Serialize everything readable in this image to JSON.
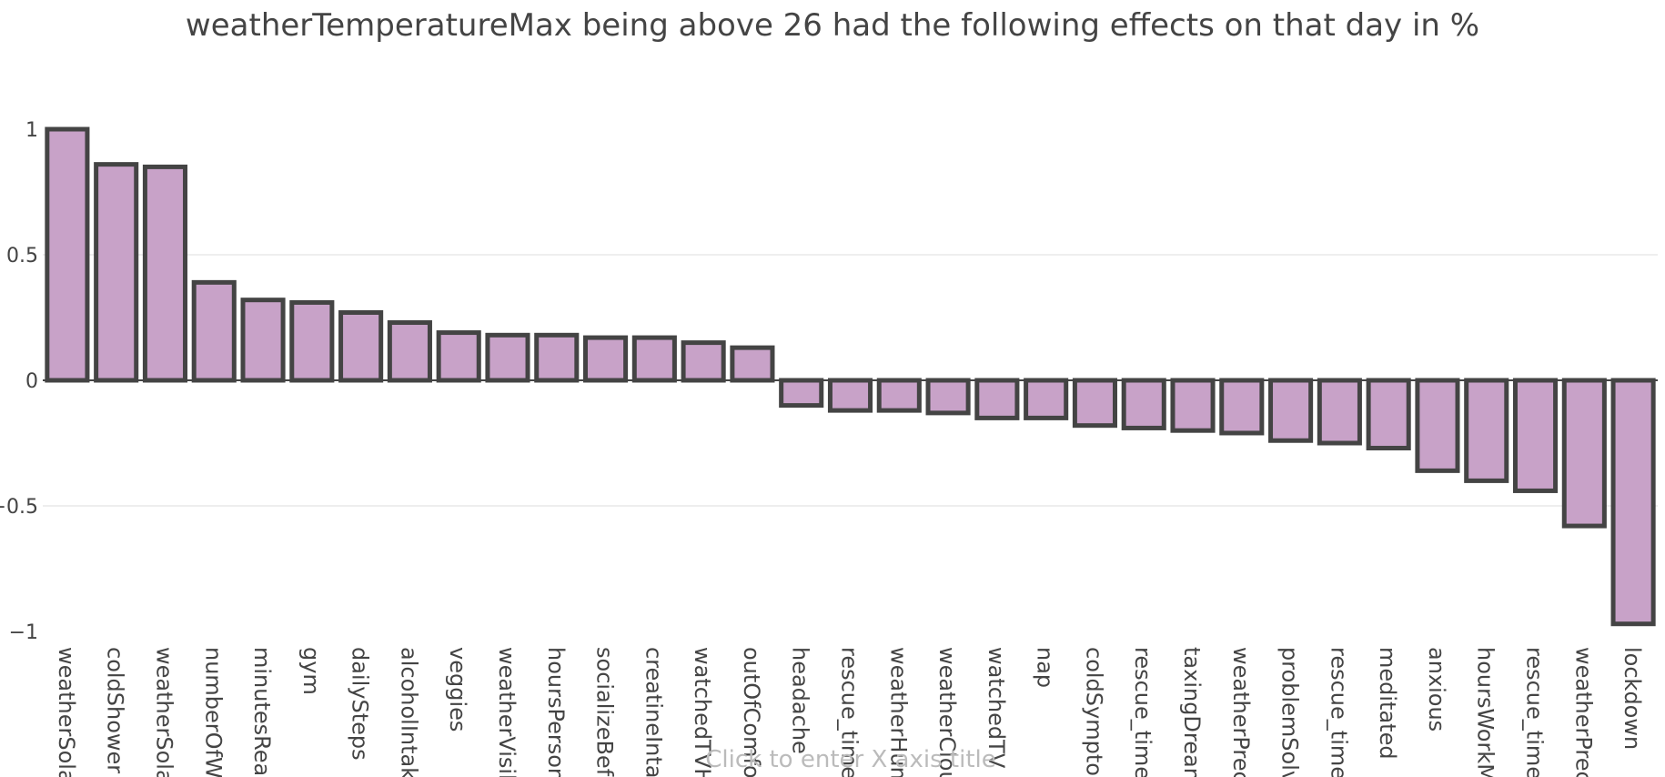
{
  "chart_data": {
    "type": "bar",
    "title": "weatherTemperatureMax being above 26 had the following effects on that day in %",
    "xlabel_placeholder": "Click to enter X axis title",
    "ylim": [
      -1,
      1
    ],
    "y_ticks": [
      {
        "value": 1,
        "label": "1"
      },
      {
        "value": 0.5,
        "label": "0.5"
      },
      {
        "value": 0,
        "label": "0"
      },
      {
        "value": -0.5,
        "label": "−0.5"
      },
      {
        "value": -1,
        "label": "−1"
      }
    ],
    "grid": true,
    "bar_color": "#c8a2c8",
    "bar_outline_color": "#444444",
    "categories": [
      "weatherSolar",
      "coldShower",
      "weatherSolar",
      "numberOfWo",
      "minutesRead",
      "gym",
      "dailySteps",
      "alcoholIntake",
      "veggies",
      "weatherVisib",
      "hoursPerson",
      "socializeBefo",
      "creatineIntak",
      "watchedTVHo",
      "outOfComfor",
      "headache",
      "rescue_time_",
      "weatherHum",
      "weatherClou",
      "watchedTV",
      "nap",
      "coldSympton",
      "rescue_time_",
      "taxingDream",
      "weatherPreci",
      "problemSolvi",
      "rescue_time_",
      "meditated",
      "anxious",
      "hoursWorkM",
      "rescue_time_",
      "weatherPreci",
      "lockdown"
    ],
    "values": [
      1.0,
      0.86,
      0.85,
      0.39,
      0.32,
      0.31,
      0.27,
      0.23,
      0.19,
      0.18,
      0.18,
      0.17,
      0.17,
      0.15,
      0.13,
      -0.1,
      -0.12,
      -0.12,
      -0.13,
      -0.15,
      -0.15,
      -0.18,
      -0.19,
      -0.2,
      -0.21,
      -0.24,
      -0.25,
      -0.27,
      -0.36,
      -0.4,
      -0.44,
      -0.58,
      -0.97
    ]
  }
}
